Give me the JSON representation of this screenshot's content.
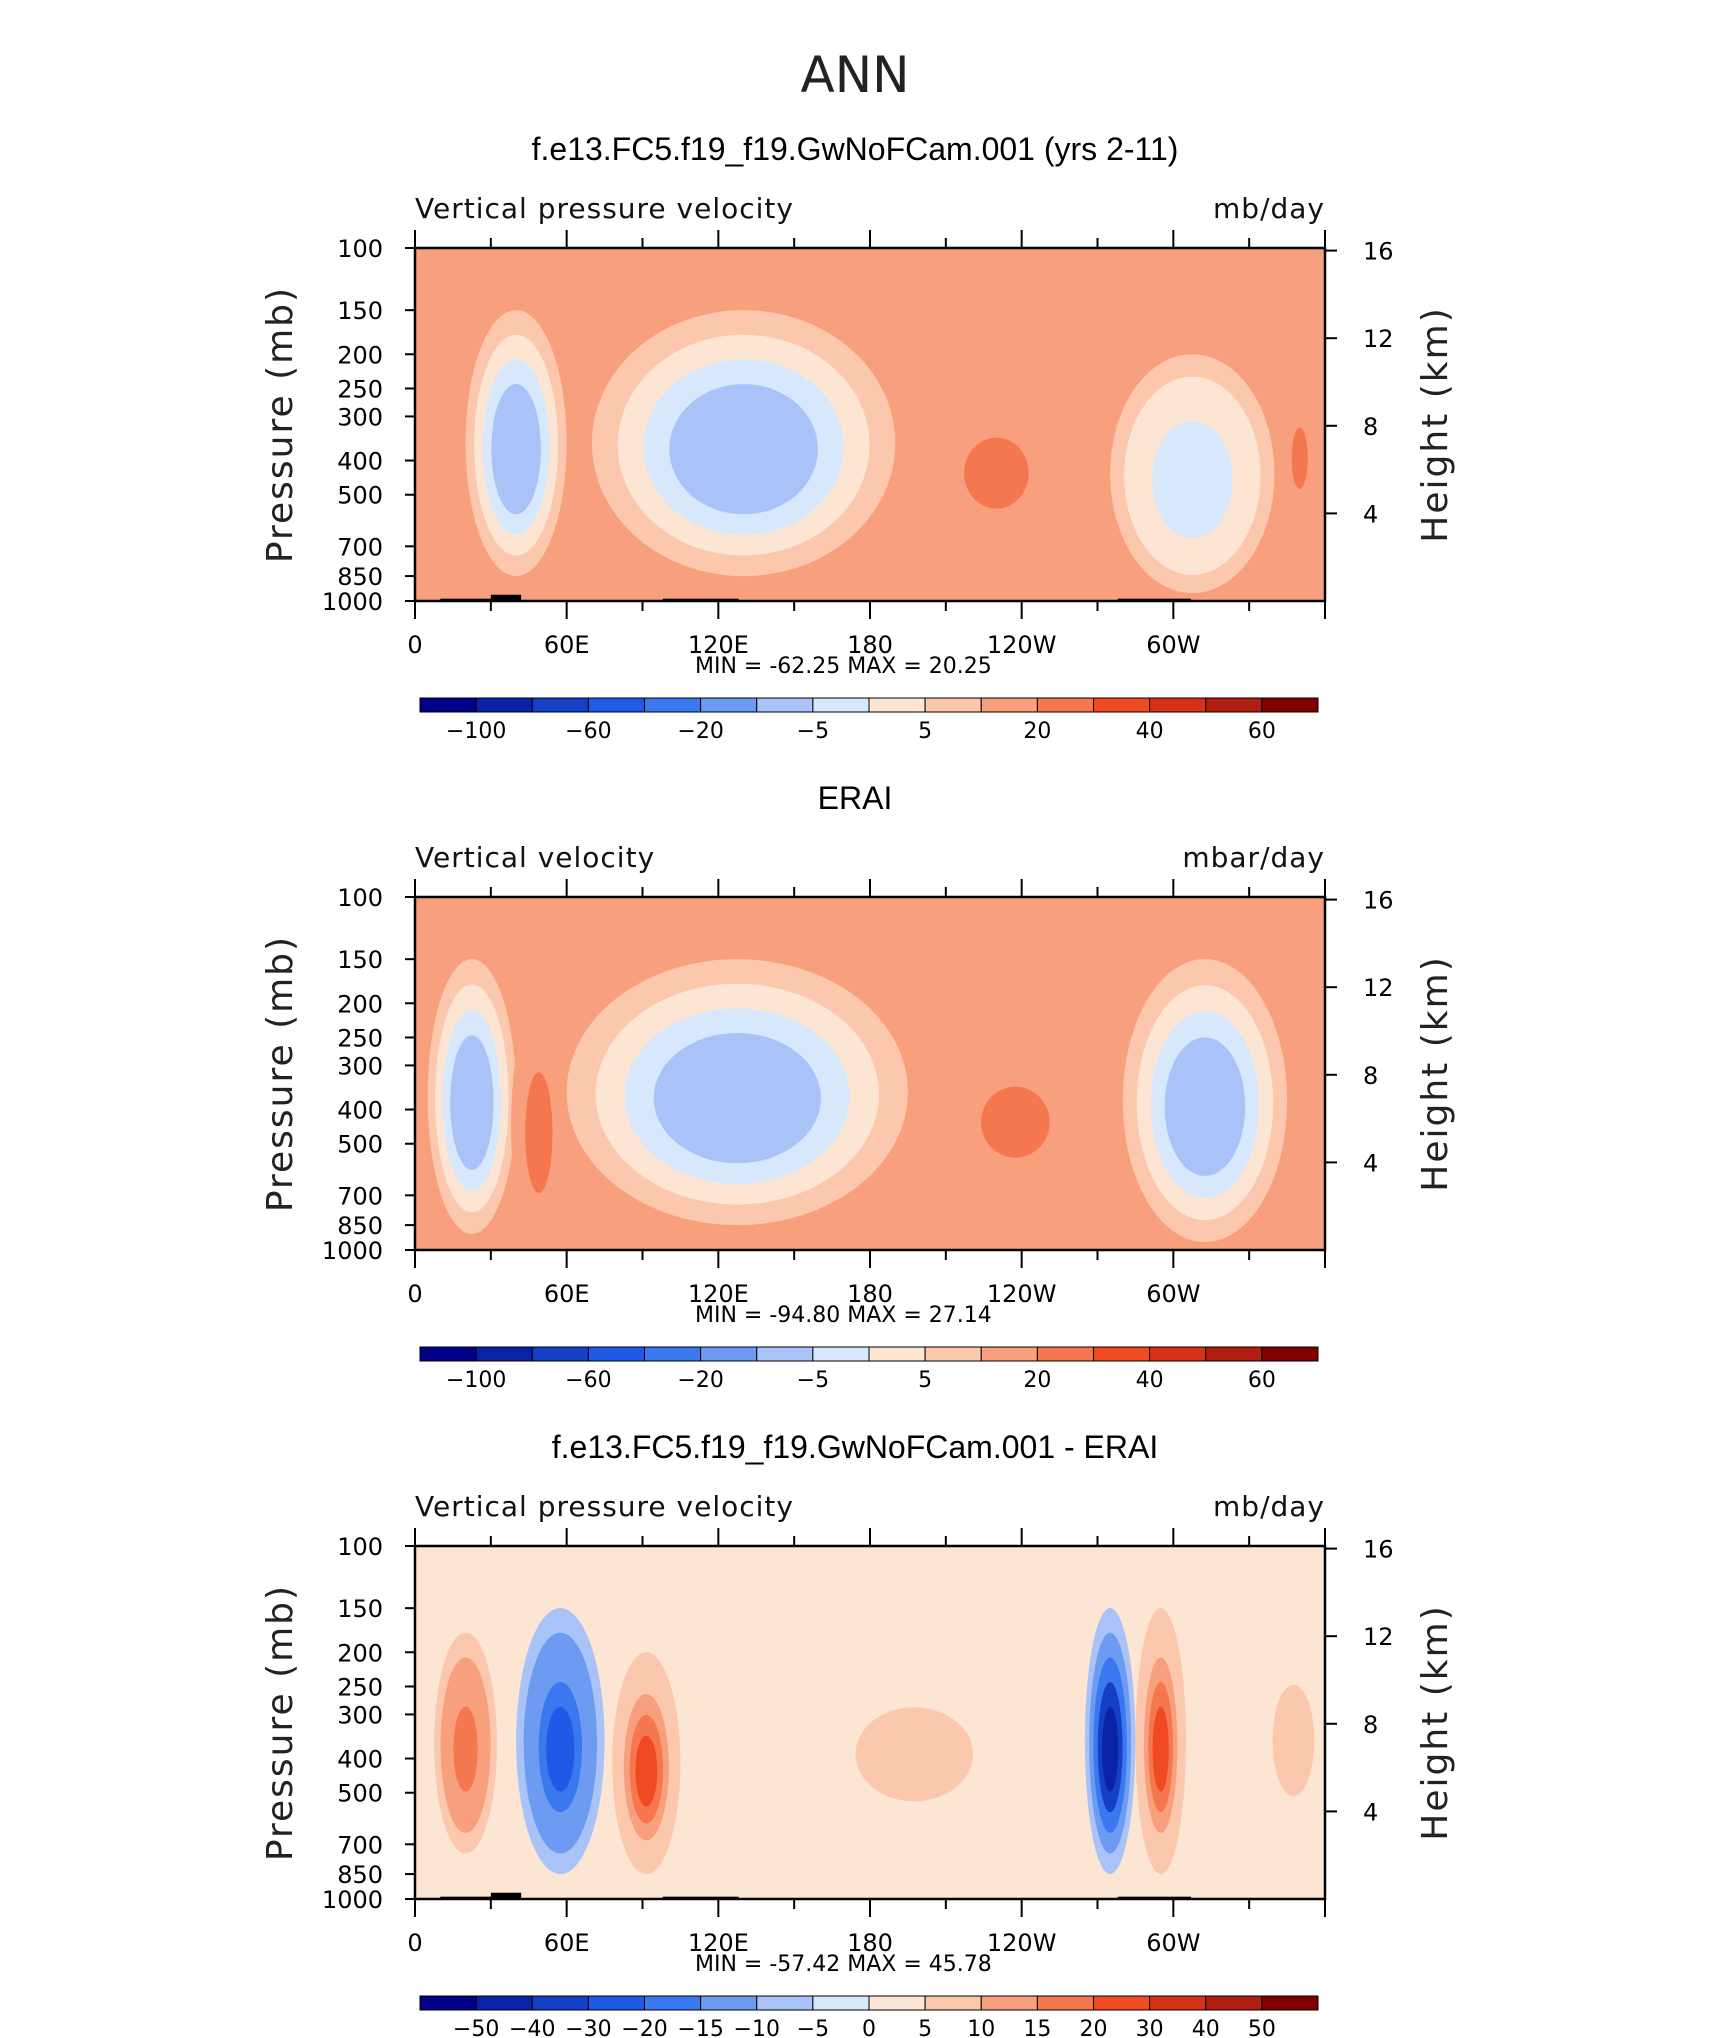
{
  "page": {
    "title": "ANN"
  },
  "axes": {
    "left_label": "Pressure (mb)",
    "right_label": "Height (km)",
    "pressure_ticks": [
      "100",
      "150",
      "200",
      "250",
      "300",
      "400",
      "500",
      "700",
      "850",
      "1000"
    ],
    "height_ticks": [
      "16",
      "12",
      "8",
      "4"
    ],
    "lon_ticks": [
      "0",
      "60E",
      "120E",
      "180",
      "120W",
      "60W"
    ]
  },
  "chart_data": [
    {
      "type": "heatmap",
      "title": "f.e13.FC5.f19_f19.GwNoFCam.001 (yrs 2-11)",
      "variable_label": "Vertical pressure velocity",
      "units_label": "mb/day",
      "stats": {
        "min_label": "MIN =",
        "min": "-62.25",
        "max_label": "MAX =",
        "max": "20.25"
      },
      "x": {
        "label": "",
        "ticks": [
          "0",
          "60E",
          "120E",
          "180",
          "120W",
          "60W"
        ],
        "range_deg": [
          0,
          360
        ]
      },
      "y": {
        "label": "Pressure (mb)",
        "ticks": [
          100,
          150,
          200,
          250,
          300,
          400,
          500,
          700,
          850,
          1000
        ],
        "scale": "log"
      },
      "y2": {
        "label": "Height (km)",
        "ticks": [
          16,
          12,
          8,
          4
        ]
      },
      "colorbar": {
        "labels": [
          "-100",
          "-60",
          "-20",
          "-5",
          "5",
          "20",
          "40",
          "60"
        ],
        "colors": [
          "#00008b",
          "#0a23a6",
          "#1440c8",
          "#1e5ae6",
          "#3a78f0",
          "#6e9bf2",
          "#a9c3f8",
          "#d7e7fc",
          "#fde5d4",
          "#fcc8ad",
          "#f8a07e",
          "#f57750",
          "#f04a23",
          "#d8311a",
          "#b01e12",
          "#800000"
        ]
      },
      "features": [
        {
          "lon_start": 20,
          "lon_end": 60,
          "p_top": 150,
          "p_bottom": 850,
          "value": -40
        },
        {
          "lon_start": 70,
          "lon_end": 190,
          "p_top": 150,
          "p_bottom": 850,
          "value": -40
        },
        {
          "lon_start": 190,
          "lon_end": 270,
          "p_top": 200,
          "p_bottom": 850,
          "value": 10
        },
        {
          "lon_start": 275,
          "lon_end": 340,
          "p_top": 200,
          "p_bottom": 950,
          "value": -30
        },
        {
          "lon_start": 340,
          "lon_end": 360,
          "p_top": 200,
          "p_bottom": 700,
          "value": 10
        }
      ]
    },
    {
      "type": "heatmap",
      "title": "ERAI",
      "variable_label": "Vertical velocity",
      "units_label": "mbar/day",
      "stats": {
        "min_label": "MIN =",
        "min": "-94.80",
        "max_label": "MAX =",
        "max": "27.14"
      },
      "x": {
        "label": "",
        "ticks": [
          "0",
          "60E",
          "120E",
          "180",
          "120W",
          "60W"
        ],
        "range_deg": [
          0,
          360
        ]
      },
      "y": {
        "label": "Pressure (mb)",
        "ticks": [
          100,
          150,
          200,
          250,
          300,
          400,
          500,
          700,
          850,
          1000
        ],
        "scale": "log"
      },
      "y2": {
        "label": "Height (km)",
        "ticks": [
          16,
          12,
          8,
          4
        ]
      },
      "colorbar": {
        "labels": [
          "-100",
          "-60",
          "-20",
          "-5",
          "5",
          "20",
          "40",
          "60"
        ],
        "colors": [
          "#00008b",
          "#0a23a6",
          "#1440c8",
          "#1e5ae6",
          "#3a78f0",
          "#6e9bf2",
          "#a9c3f8",
          "#d7e7fc",
          "#fde5d4",
          "#fcc8ad",
          "#f8a07e",
          "#f57750",
          "#f04a23",
          "#d8311a",
          "#b01e12",
          "#800000"
        ]
      },
      "features": [
        {
          "lon_start": 5,
          "lon_end": 40,
          "p_top": 150,
          "p_bottom": 900,
          "value": -40
        },
        {
          "lon_start": 38,
          "lon_end": 60,
          "p_top": 200,
          "p_bottom": 1000,
          "value": 15
        },
        {
          "lon_start": 60,
          "lon_end": 195,
          "p_top": 150,
          "p_bottom": 850,
          "value": -40
        },
        {
          "lon_start": 195,
          "lon_end": 280,
          "p_top": 200,
          "p_bottom": 850,
          "value": 10
        },
        {
          "lon_start": 280,
          "lon_end": 345,
          "p_top": 150,
          "p_bottom": 950,
          "value": -40
        }
      ]
    },
    {
      "type": "heatmap",
      "title": "f.e13.FC5.f19_f19.GwNoFCam.001 - ERAI",
      "variable_label": "Vertical pressure velocity",
      "units_label": "mb/day",
      "stats": {
        "min_label": "MIN =",
        "min": "-57.42",
        "max_label": "MAX =",
        "max": "45.78"
      },
      "x": {
        "label": "",
        "ticks": [
          "0",
          "60E",
          "120E",
          "180",
          "120W",
          "60W"
        ],
        "range_deg": [
          0,
          360
        ]
      },
      "y": {
        "label": "Pressure (mb)",
        "ticks": [
          100,
          150,
          200,
          250,
          300,
          400,
          500,
          700,
          850,
          1000
        ],
        "scale": "log"
      },
      "y2": {
        "label": "Height (km)",
        "ticks": [
          16,
          12,
          8,
          4
        ]
      },
      "colorbar": {
        "labels": [
          "-50",
          "-40",
          "-30",
          "-20",
          "-15",
          "-10",
          "-5",
          "0",
          "5",
          "10",
          "15",
          "20",
          "30",
          "40",
          "50"
        ],
        "colors": [
          "#00008b",
          "#0a23a6",
          "#1440c8",
          "#1e5ae6",
          "#3a78f0",
          "#6e9bf2",
          "#a9c3f8",
          "#d7e7fc",
          "#fde5d4",
          "#fcc8ad",
          "#f8a07e",
          "#f57750",
          "#f04a23",
          "#d8311a",
          "#b01e12",
          "#800000"
        ]
      },
      "features": [
        {
          "lon_start": 5,
          "lon_end": 35,
          "p_top": 150,
          "p_bottom": 850,
          "value": 20
        },
        {
          "lon_start": 40,
          "lon_end": 75,
          "p_top": 150,
          "p_bottom": 850,
          "value": -30
        },
        {
          "lon_start": 78,
          "lon_end": 105,
          "p_top": 200,
          "p_bottom": 850,
          "value": 25
        },
        {
          "lon_start": 150,
          "lon_end": 245,
          "p_top": 200,
          "p_bottom": 700,
          "value": 8
        },
        {
          "lon_start": 265,
          "lon_end": 285,
          "p_top": 150,
          "p_bottom": 850,
          "value": -40
        },
        {
          "lon_start": 285,
          "lon_end": 305,
          "p_top": 150,
          "p_bottom": 850,
          "value": 25
        },
        {
          "lon_start": 335,
          "lon_end": 360,
          "p_top": 200,
          "p_bottom": 600,
          "value": 10
        }
      ]
    }
  ]
}
